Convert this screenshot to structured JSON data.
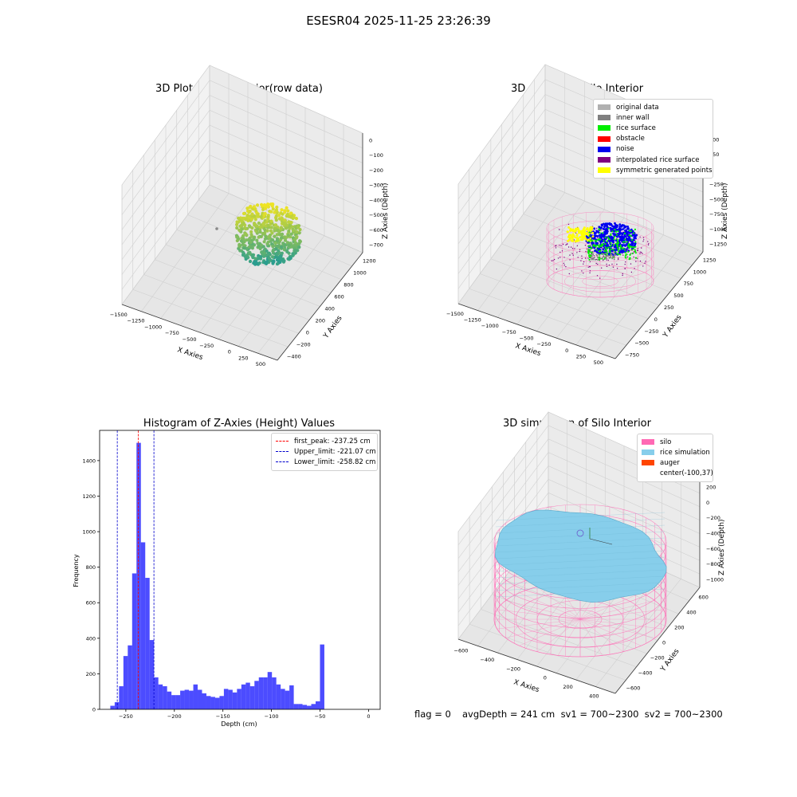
{
  "figure": {
    "suptitle": "ESESR04 2025-11-25 23:26:39"
  },
  "panel_raw": {
    "title": "3D Plot of Silo Interior(row data)",
    "xlabel": "X Axies",
    "ylabel": "Y Axies",
    "zlabel": "Z Axies (Depth)",
    "x_ticks": [
      "−1500",
      "−1250",
      "−1000",
      "−750",
      "−500",
      "−250",
      "0",
      "250",
      "500"
    ],
    "y_ticks": [
      "−400",
      "−200",
      "0",
      "200",
      "400",
      "600",
      "800",
      "1000",
      "1200"
    ],
    "z_ticks": [
      "0",
      "−100",
      "−200",
      "−300",
      "−400",
      "−500",
      "−600",
      "−700"
    ],
    "colors": {
      "low": "#2a9d8f",
      "high": "#f0e422"
    }
  },
  "panel_classify": {
    "title": "3D classify of Silo Interior",
    "xlabel": "X Axies",
    "ylabel": "Y Axies",
    "zlabel": "Z Axies (Depth)",
    "x_ticks": [
      "−1500",
      "−1250",
      "−1000",
      "−750",
      "−500",
      "−250",
      "0",
      "250",
      "500"
    ],
    "y_ticks": [
      "−750",
      "−500",
      "−250",
      "0",
      "250",
      "500",
      "750",
      "1000",
      "1250"
    ],
    "z_ticks": [
      "500",
      "250",
      "0",
      "−250",
      "−500",
      "−750",
      "−1000",
      "−1250"
    ],
    "legend": [
      {
        "label": "original data",
        "color": "#b0b0b0"
      },
      {
        "label": "inner wall",
        "color": "#808080"
      },
      {
        "label": "rice surface",
        "color": "#00ee00"
      },
      {
        "label": "obstacle",
        "color": "#ff0000"
      },
      {
        "label": "noise",
        "color": "#0000ee"
      },
      {
        "label": "interpolated rice surface",
        "color": "#800080"
      },
      {
        "label": "symmetric generated points",
        "color": "#ffff00"
      }
    ],
    "wall_color": "#ff69b4"
  },
  "panel_sim": {
    "title": "3D simulation of Silo Interior",
    "xlabel": "X Axies",
    "ylabel": "Y Axies",
    "zlabel": "Z Axies (Depth)",
    "x_ticks": [
      "−600",
      "−400",
      "−200",
      "0",
      "200",
      "400"
    ],
    "y_ticks": [
      "−600",
      "−400",
      "−200",
      "0",
      "200",
      "400",
      "600"
    ],
    "z_ticks": [
      "200",
      "0",
      "−200",
      "−400",
      "−600",
      "−800",
      "−1000"
    ],
    "legend": [
      {
        "label": "silo",
        "color": "#ff69b4"
      },
      {
        "label": "rice simulation",
        "color": "#87ceeb"
      },
      {
        "label": "auger",
        "color": "#ff4500"
      },
      {
        "label": "center(-100,37)",
        "color": ""
      }
    ],
    "surface_color": "#87ceeb"
  },
  "footer": {
    "flag": "flag = 0",
    "stats": "avgDepth = 241 cm  sv1 = 700~2300  sv2 = 700~2300"
  },
  "chart_data": [
    {
      "type": "histogram",
      "title": "Histogram of Z-Axies (Height) Values",
      "xlabel": "Depth (cm)",
      "ylabel": "Frequency",
      "xlim": [
        -277,
        12
      ],
      "ylim": [
        0,
        1570
      ],
      "x_ticks": [
        -250,
        -200,
        -150,
        -100,
        -50,
        0
      ],
      "x_tick_labels": [
        "−250",
        "−200",
        "−150",
        "−100",
        "−50",
        "0"
      ],
      "y_ticks": [
        0,
        200,
        400,
        600,
        800,
        1000,
        1200,
        1400
      ],
      "bar_color": "#0000ff",
      "bins_start": -266,
      "bin_width": 4.5,
      "frequencies": [
        20,
        40,
        130,
        300,
        360,
        765,
        1500,
        940,
        740,
        390,
        180,
        140,
        130,
        100,
        80,
        80,
        105,
        110,
        105,
        140,
        110,
        90,
        75,
        70,
        65,
        75,
        115,
        110,
        95,
        115,
        140,
        150,
        130,
        160,
        180,
        180,
        210,
        180,
        140,
        115,
        105,
        135,
        30,
        30,
        25,
        20,
        30,
        45,
        365
      ],
      "vlines": [
        {
          "label": "first_peak: -237.25 cm",
          "x": -237.25,
          "color": "#ff0000"
        },
        {
          "label": "Upper_limit: -221.07 cm",
          "x": -221.07,
          "color": "#0000cd"
        },
        {
          "label": "Lower_limit: -258.82 cm",
          "x": -258.82,
          "color": "#0000cd"
        }
      ],
      "legend_position": "upper right"
    }
  ]
}
